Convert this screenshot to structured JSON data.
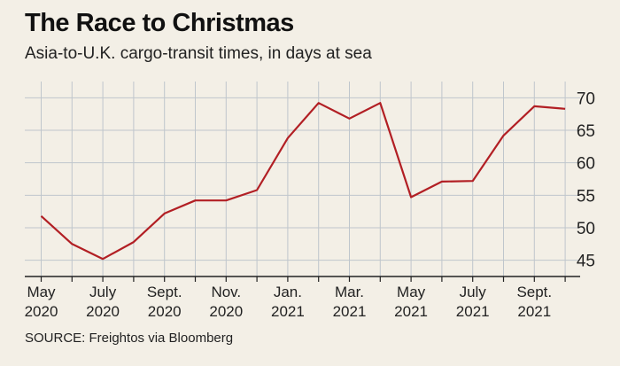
{
  "header": {
    "title": "The Race to Christmas",
    "subtitle": "Asia-to-U.K. cargo-transit times, in days at sea"
  },
  "footer": {
    "source": "SOURCE: Freightos via Bloomberg"
  },
  "colors": {
    "background": "#f3efe6",
    "line": "#b21f24",
    "grid": "#bfc6cc",
    "axis": "#222222"
  },
  "chart_data": {
    "type": "line",
    "title": "The Race to Christmas",
    "subtitle": "Asia-to-U.K. cargo-transit times, in days at sea",
    "xlabel": "",
    "ylabel": "",
    "x": [
      "May 2020",
      "Jun 2020",
      "Jul 2020",
      "Aug 2020",
      "Sep 2020",
      "Oct 2020",
      "Nov 2020",
      "Dec 2020",
      "Jan 2021",
      "Feb 2021",
      "Mar 2021",
      "Apr 2021",
      "May 2021",
      "Jun 2021",
      "Jul 2021",
      "Aug 2021",
      "Sep 2021",
      "Oct 2021"
    ],
    "series": [
      {
        "values": [
          51.8,
          47.5,
          45.2,
          47.8,
          52.2,
          54.2,
          54.2,
          55.8,
          63.8,
          69.2,
          66.8,
          69.2,
          54.7,
          57.1,
          57.2,
          64.2,
          68.7,
          68.3
        ]
      }
    ],
    "x_tick_labels": [
      {
        "month": "May",
        "year": "2020"
      },
      {
        "month": "July",
        "year": "2020"
      },
      {
        "month": "Sept.",
        "year": "2020"
      },
      {
        "month": "Nov.",
        "year": "2020"
      },
      {
        "month": "Jan.",
        "year": "2021"
      },
      {
        "month": "Mar.",
        "year": "2021"
      },
      {
        "month": "May",
        "year": "2021"
      },
      {
        "month": "July",
        "year": "2021"
      },
      {
        "month": "Sept.",
        "year": "2021"
      }
    ],
    "x_tick_index": [
      0,
      2,
      4,
      6,
      8,
      10,
      12,
      14,
      16
    ],
    "y_ticks": [
      45,
      50,
      55,
      60,
      65,
      70
    ],
    "ylim": [
      42.5,
      72.5
    ],
    "grid": true,
    "legend": "none"
  }
}
